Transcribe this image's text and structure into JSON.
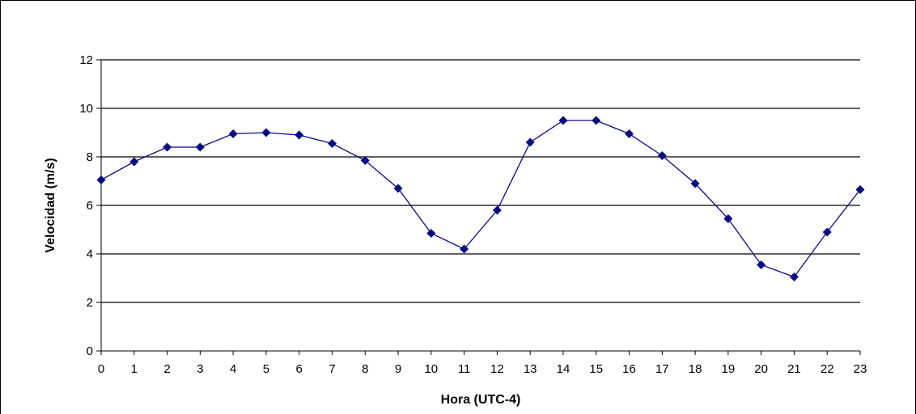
{
  "chart_data": {
    "type": "line",
    "xlabel": "Hora (UTC-4)",
    "ylabel": "Velocidad (m/s)",
    "ylim": [
      0,
      12
    ],
    "yticks": [
      0,
      2,
      4,
      6,
      8,
      10,
      12
    ],
    "xlim": [
      0,
      23
    ],
    "grid": "horizontal",
    "legend": "none",
    "series": [
      {
        "x": [
          0,
          1,
          2,
          3,
          4,
          5,
          6,
          7,
          8,
          9,
          10,
          11,
          12,
          13,
          14,
          15,
          16,
          17,
          18,
          19,
          20,
          21,
          22,
          23
        ],
        "values": [
          7.05,
          7.8,
          8.4,
          8.4,
          8.95,
          9.0,
          8.9,
          8.55,
          7.85,
          6.7,
          4.85,
          4.2,
          5.8,
          8.6,
          9.5,
          9.5,
          8.95,
          8.05,
          6.9,
          5.45,
          3.55,
          3.05,
          4.9,
          6.65
        ]
      }
    ],
    "colors": {
      "line": "#0a0a80",
      "marker": "#0a0a80",
      "grid": "#000000",
      "axis": "#000000"
    }
  }
}
